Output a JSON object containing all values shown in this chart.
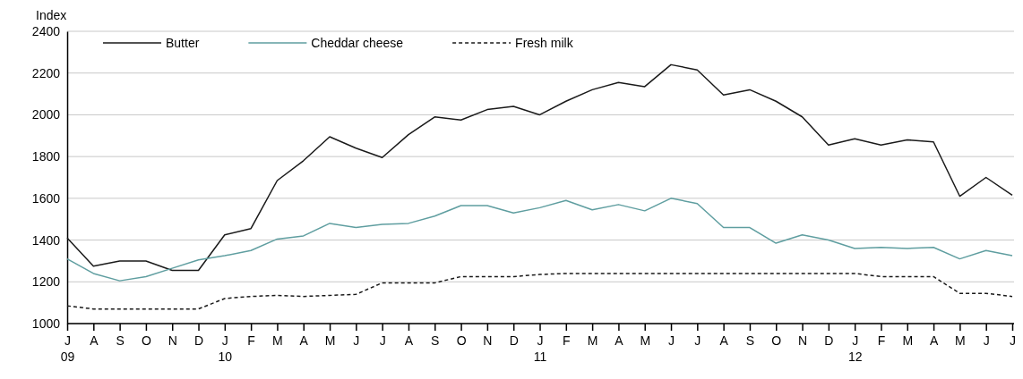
{
  "chart_data": {
    "type": "line",
    "ylabel": "Index",
    "categories": [
      "J\n09",
      "A",
      "S",
      "O",
      "N",
      "D",
      "J\n10",
      "F",
      "M",
      "A",
      "M",
      "J",
      "J",
      "A",
      "S",
      "O",
      "N",
      "D",
      "J\n11",
      "F",
      "M",
      "A",
      "M",
      "J",
      "J",
      "A",
      "S",
      "O",
      "N",
      "D",
      "J\n12",
      "F",
      "M",
      "A",
      "M",
      "J",
      "J"
    ],
    "series": [
      {
        "name": "Butter",
        "color": "#1a1a1a",
        "line_style": "solid",
        "values": [
          1410,
          1275,
          1300,
          1300,
          1255,
          1255,
          1425,
          1455,
          1685,
          1780,
          1895,
          1840,
          1795,
          1905,
          1990,
          1975,
          2025,
          2040,
          2000,
          2065,
          2120,
          2155,
          2135,
          2240,
          2215,
          2095,
          2120,
          2065,
          1990,
          1855,
          1885,
          1855,
          1880,
          1870,
          1610,
          1700,
          1615
        ]
      },
      {
        "name": "Cheddar cheese",
        "color": "#5f9ea0",
        "line_style": "solid",
        "values": [
          1310,
          1240,
          1205,
          1225,
          1265,
          1305,
          1325,
          1350,
          1405,
          1420,
          1480,
          1460,
          1475,
          1480,
          1515,
          1565,
          1565,
          1530,
          1555,
          1590,
          1545,
          1570,
          1540,
          1600,
          1575,
          1460,
          1460,
          1385,
          1425,
          1400,
          1360,
          1365,
          1360,
          1365,
          1310,
          1350,
          1325
        ]
      },
      {
        "name": "Fresh milk",
        "color": "#1a1a1a",
        "line_style": "dashed",
        "values": [
          1085,
          1070,
          1070,
          1070,
          1070,
          1070,
          1120,
          1130,
          1135,
          1130,
          1135,
          1140,
          1195,
          1195,
          1195,
          1225,
          1225,
          1225,
          1235,
          1240,
          1240,
          1240,
          1240,
          1240,
          1240,
          1240,
          1240,
          1240,
          1240,
          1240,
          1240,
          1225,
          1225,
          1225,
          1145,
          1145,
          1130
        ]
      }
    ],
    "ylim": [
      1000,
      2400
    ],
    "yticks": [
      1000,
      1200,
      1400,
      1600,
      1800,
      2000,
      2200,
      2400
    ],
    "grid": "y",
    "legend": "top left",
    "marker": "none"
  }
}
